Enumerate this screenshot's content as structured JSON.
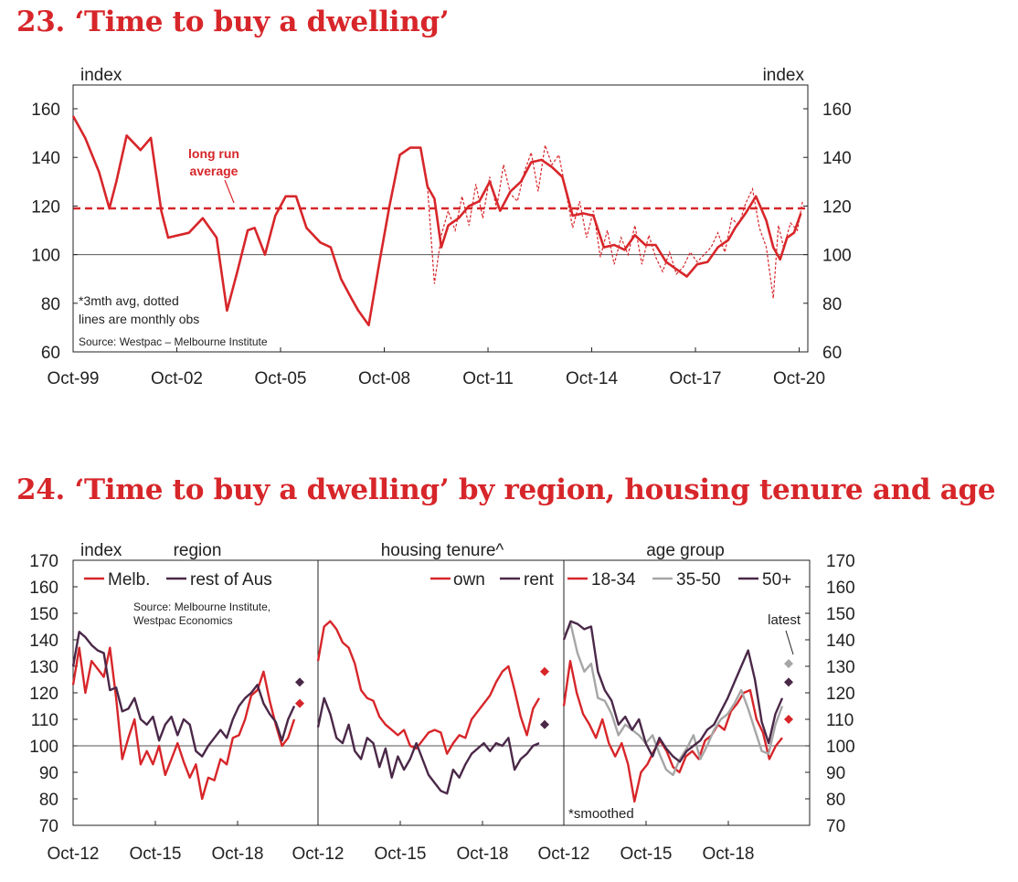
{
  "titles": {
    "chart23": "23. ‘Time to buy a dwelling’",
    "chart24": "24. ‘Time to buy a dwelling’ by region, housing tenure and age"
  },
  "colors": {
    "red": "#d7262a",
    "purple": "#4a2848",
    "grey": "#a6a6a6",
    "axis": "#222222"
  },
  "chart_data": [
    {
      "id": "chart23",
      "type": "line",
      "title": "23. ‘Time to buy a dwelling’",
      "ylabel_left": "index",
      "ylabel_right": "index",
      "ylim": [
        60,
        160
      ],
      "yticks": [
        "60",
        "80",
        "100",
        "120",
        "140",
        "160"
      ],
      "xticks": [
        "Oct-99",
        "Oct-02",
        "Oct-05",
        "Oct-08",
        "Oct-11",
        "Oct-14",
        "Oct-17",
        "Oct-20"
      ],
      "xlim": [
        1999.75,
        2021.0
      ],
      "average_label": [
        "long run",
        "average"
      ],
      "average_value": 119,
      "notes": [
        "*3mth avg, dotted",
        "lines are monthly obs"
      ],
      "source": "Source: Westpac – Melbourne Institute",
      "series": [
        {
          "name": "3mth avg",
          "style": "solid",
          "x": [
            1999.75,
            2000.1,
            2000.5,
            2000.8,
            2001.0,
            2001.3,
            2001.7,
            2002.0,
            2002.3,
            2002.5,
            2002.8,
            2003.1,
            2003.5,
            2003.9,
            2004.2,
            2004.5,
            2004.8,
            2005.0,
            2005.3,
            2005.6,
            2005.9,
            2006.2,
            2006.5,
            2006.9,
            2007.2,
            2007.5,
            2007.8,
            2008.0,
            2008.3,
            2008.6,
            2008.9,
            2009.2,
            2009.5,
            2009.8,
            2010.0,
            2010.2,
            2010.4,
            2010.6,
            2010.9,
            2011.2,
            2011.5,
            2011.8,
            2012.1,
            2012.4,
            2012.7,
            2013.0,
            2013.3,
            2013.6,
            2013.9,
            2014.2,
            2014.5,
            2014.8,
            2015.1,
            2015.4,
            2015.7,
            2016.0,
            2016.3,
            2016.6,
            2016.9,
            2017.2,
            2017.5,
            2017.8,
            2018.1,
            2018.4,
            2018.7,
            2018.9,
            2019.2,
            2019.5,
            2019.8,
            2020.0,
            2020.2,
            2020.4,
            2020.6,
            2020.8
          ],
          "values": [
            157,
            148,
            134,
            119,
            130,
            149,
            143,
            148,
            118,
            107,
            108,
            109,
            115,
            107,
            77,
            93,
            110,
            111,
            100,
            116,
            124,
            124,
            111,
            105,
            103,
            90,
            82,
            77,
            71,
            96,
            120,
            141,
            144,
            144,
            128,
            123,
            103,
            112,
            115,
            120,
            122,
            130,
            118,
            126,
            130,
            138,
            139,
            136,
            132,
            116,
            117,
            116,
            103,
            104,
            102,
            108,
            104,
            104,
            97,
            94,
            91,
            96,
            97,
            103,
            106,
            111,
            117,
            124,
            114,
            103,
            98,
            107,
            109,
            117
          ]
        },
        {
          "name": "monthly obs",
          "style": "dotted",
          "x": [
            2010.0,
            2010.2,
            2010.4,
            2010.6,
            2010.8,
            2011.0,
            2011.2,
            2011.4,
            2011.6,
            2011.8,
            2012.0,
            2012.2,
            2012.4,
            2012.6,
            2012.8,
            2013.0,
            2013.2,
            2013.4,
            2013.6,
            2013.8,
            2014.0,
            2014.2,
            2014.4,
            2014.6,
            2014.8,
            2015.0,
            2015.2,
            2015.4,
            2015.6,
            2015.8,
            2016.0,
            2016.2,
            2016.4,
            2016.6,
            2016.8,
            2017.0,
            2017.2,
            2017.4,
            2017.6,
            2017.8,
            2018.0,
            2018.2,
            2018.4,
            2018.6,
            2018.8,
            2019.0,
            2019.2,
            2019.4,
            2019.6,
            2019.8,
            2020.0,
            2020.15,
            2020.3,
            2020.5,
            2020.7,
            2020.85
          ],
          "values": [
            128,
            88,
            108,
            118,
            110,
            124,
            112,
            129,
            115,
            132,
            119,
            137,
            125,
            122,
            134,
            142,
            126,
            145,
            137,
            141,
            126,
            111,
            122,
            107,
            118,
            99,
            110,
            96,
            107,
            100,
            112,
            96,
            108,
            99,
            93,
            101,
            92,
            95,
            101,
            97,
            100,
            103,
            109,
            101,
            115,
            112,
            121,
            127,
            111,
            103,
            82,
            112,
            103,
            113,
            110,
            122
          ]
        }
      ]
    },
    {
      "id": "chart24",
      "type": "line",
      "title": "24. ‘Time to buy a dwelling’ by region, housing tenure and age",
      "ylabel_left": "index",
      "ylim": [
        70,
        170
      ],
      "yticks": [
        "70",
        "80",
        "90",
        "100",
        "110",
        "120",
        "130",
        "140",
        "150",
        "160",
        "170"
      ],
      "source_lines": [
        "Source: Melbourne Institute,",
        "Westpac Economics"
      ],
      "latest_label": "latest",
      "smoothed_note": "*smoothed",
      "panels": [
        {
          "name": "region",
          "xticks": [
            "Oct-12",
            "Oct-15",
            "Oct-18"
          ],
          "legend": [
            "Melb.",
            "rest of Aus"
          ],
          "series": [
            {
              "name": "Melb.",
              "color": "red",
              "values": [
                123,
                137,
                120,
                132,
                129,
                126,
                137,
                118,
                95,
                103,
                110,
                93,
                98,
                93,
                100,
                89,
                95,
                101,
                94,
                88,
                93,
                80,
                88,
                87,
                95,
                93,
                103,
                104,
                110,
                119,
                121,
                128,
                117,
                108,
                100,
                103,
                110
              ],
              "latest": 116
            },
            {
              "name": "rest of Aus",
              "color": "purple",
              "values": [
                130,
                143,
                141,
                138,
                136,
                135,
                121,
                122,
                113,
                114,
                118,
                110,
                108,
                111,
                102,
                108,
                111,
                104,
                110,
                108,
                98,
                96,
                100,
                103,
                106,
                103,
                110,
                115,
                118,
                120,
                123,
                116,
                112,
                109,
                102,
                110,
                115
              ],
              "latest": 124
            }
          ]
        },
        {
          "name": "housing tenure^",
          "xticks": [
            "Oct-12",
            "Oct-15",
            "Oct-18"
          ],
          "legend": [
            "own",
            "rent"
          ],
          "series": [
            {
              "name": "own",
              "color": "red",
              "values": [
                132,
                145,
                147,
                144,
                139,
                137,
                131,
                121,
                118,
                117,
                111,
                108,
                106,
                104,
                106,
                100,
                99,
                102,
                105,
                106,
                105,
                97,
                101,
                104,
                103,
                110,
                113,
                116,
                119,
                124,
                128,
                130,
                121,
                111,
                104,
                114,
                118
              ],
              "latest": 128
            },
            {
              "name": "rent",
              "color": "purple",
              "values": [
                107,
                118,
                112,
                103,
                101,
                108,
                98,
                95,
                103,
                101,
                92,
                99,
                88,
                96,
                91,
                95,
                101,
                95,
                89,
                86,
                83,
                82,
                91,
                88,
                93,
                97,
                99,
                101,
                98,
                101,
                100,
                103,
                91,
                95,
                97,
                100,
                101
              ],
              "latest": 108
            }
          ]
        },
        {
          "name": "age group",
          "xticks": [
            "Oct-12",
            "Oct-15",
            "Oct-18"
          ],
          "legend": [
            "18-34",
            "35-50",
            "50+"
          ],
          "series": [
            {
              "name": "18-34",
              "color": "red",
              "values": [
                115,
                132,
                120,
                112,
                108,
                103,
                110,
                101,
                96,
                101,
                93,
                79,
                90,
                93,
                98,
                102,
                98,
                92,
                90,
                96,
                98,
                95,
                102,
                104,
                108,
                106,
                113,
                116,
                120,
                121,
                110,
                105,
                95,
                100,
                103
              ],
              "latest": 110
            },
            {
              "name": "35-50",
              "color": "grey",
              "values": [
                141,
                146,
                135,
                128,
                131,
                118,
                117,
                112,
                104,
                108,
                106,
                104,
                101,
                104,
                97,
                91,
                89,
                95,
                99,
                104,
                95,
                100,
                106,
                110,
                112,
                116,
                121,
                114,
                106,
                98,
                97,
                108,
                115
              ],
              "latest": 131
            },
            {
              "name": "50+",
              "color": "purple",
              "values": [
                140,
                147,
                146,
                144,
                145,
                128,
                121,
                117,
                108,
                111,
                106,
                110,
                101,
                96,
                103,
                99,
                96,
                94,
                98,
                100,
                102,
                106,
                108,
                113,
                118,
                124,
                130,
                136,
                125,
                109,
                101,
                112,
                118
              ],
              "latest": 124
            }
          ]
        }
      ]
    }
  ]
}
